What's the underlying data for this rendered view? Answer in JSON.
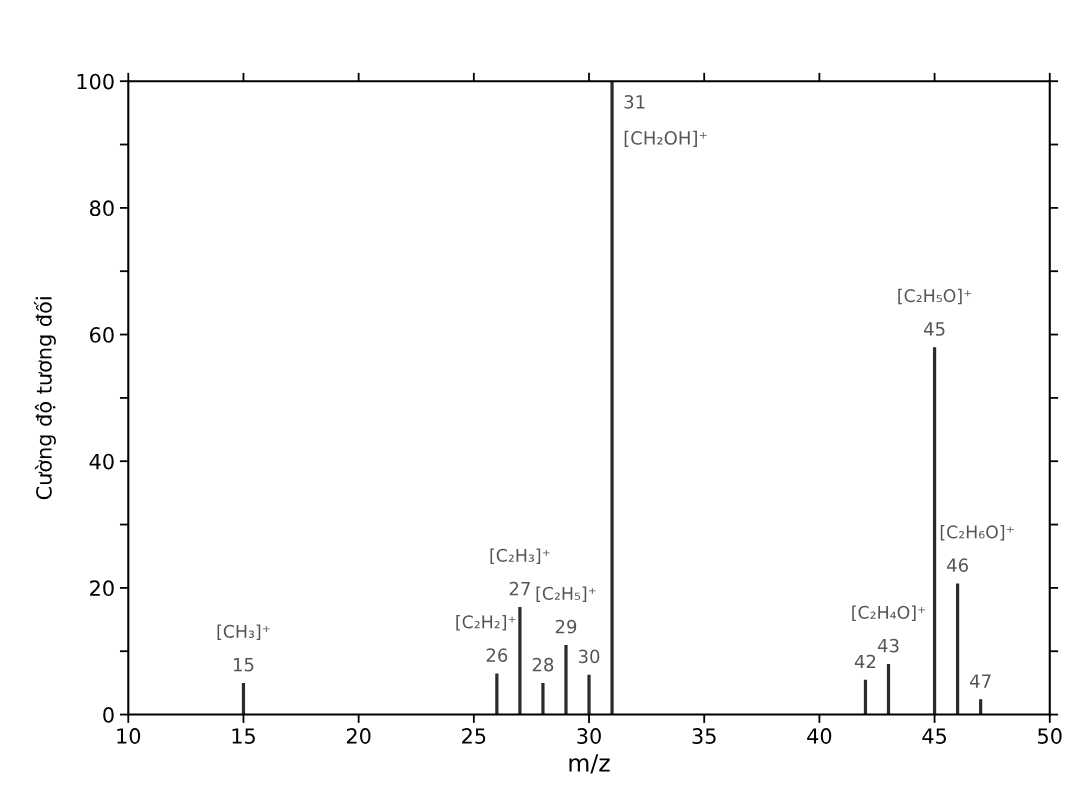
{
  "chart_data": {
    "type": "bar",
    "xlabel": "m/z",
    "ylabel": "Cường độ tương đối",
    "x": [
      15,
      26,
      27,
      28,
      29,
      30,
      31,
      42,
      43,
      45,
      46,
      47
    ],
    "values": [
      5,
      6.5,
      17,
      5,
      11,
      6.3,
      100,
      5.5,
      8,
      58,
      20.7,
      2.4
    ],
    "color": "#2b2b2b",
    "xlim": [
      10,
      50
    ],
    "xticks": [
      10,
      15,
      20,
      25,
      30,
      35,
      40,
      45,
      50
    ],
    "ylim": [
      0,
      100
    ],
    "yticks": [
      0,
      {
        "value": 10,
        "label": null
      },
      20,
      {
        "value": 30,
        "label": null
      },
      40,
      {
        "value": 50,
        "label": null
      },
      60,
      {
        "value": 70,
        "label": null
      },
      80,
      {
        "value": 90,
        "label": null
      },
      100
    ],
    "grid": false,
    "annotations": [
      {
        "text": "15",
        "x": 15,
        "y": 5
      },
      {
        "text": "[CH₃]⁺",
        "x": 15,
        "y": 5
      },
      {
        "text": "26",
        "x": 26,
        "y": 6.5
      },
      {
        "text": "[C₂H₂]⁺",
        "x": 26,
        "y": 6.5
      },
      {
        "text": "27",
        "x": 27,
        "y": 17
      },
      {
        "text": "[C₂H₃]⁺",
        "x": 27,
        "y": 17
      },
      {
        "text": "28",
        "x": 28,
        "y": 5
      },
      {
        "text": "29",
        "x": 29,
        "y": 11
      },
      {
        "text": "[C₂H₅]⁺",
        "x": 29,
        "y": 11
      },
      {
        "text": "30",
        "x": 30,
        "y": 6.3
      },
      {
        "text": "31",
        "x": 31,
        "y": 100
      },
      {
        "text": "[CH₂OH]⁺",
        "x": 31,
        "y": 100
      },
      {
        "text": "42",
        "x": 42,
        "y": 5.5
      },
      {
        "text": "43",
        "x": 43,
        "y": 8
      },
      {
        "text": "[C₂H₄O]⁺",
        "x": 43,
        "y": 8
      },
      {
        "text": "45",
        "x": 45,
        "y": 58
      },
      {
        "text": "[C₂H₅O]⁺",
        "x": 45,
        "y": 58
      },
      {
        "text": "46",
        "x": 46,
        "y": 20.7
      },
      {
        "text": "[C₂H₆O]⁺",
        "x": 46,
        "y": 20.7
      },
      {
        "text": "47",
        "x": 47,
        "y": 2.4
      }
    ]
  }
}
